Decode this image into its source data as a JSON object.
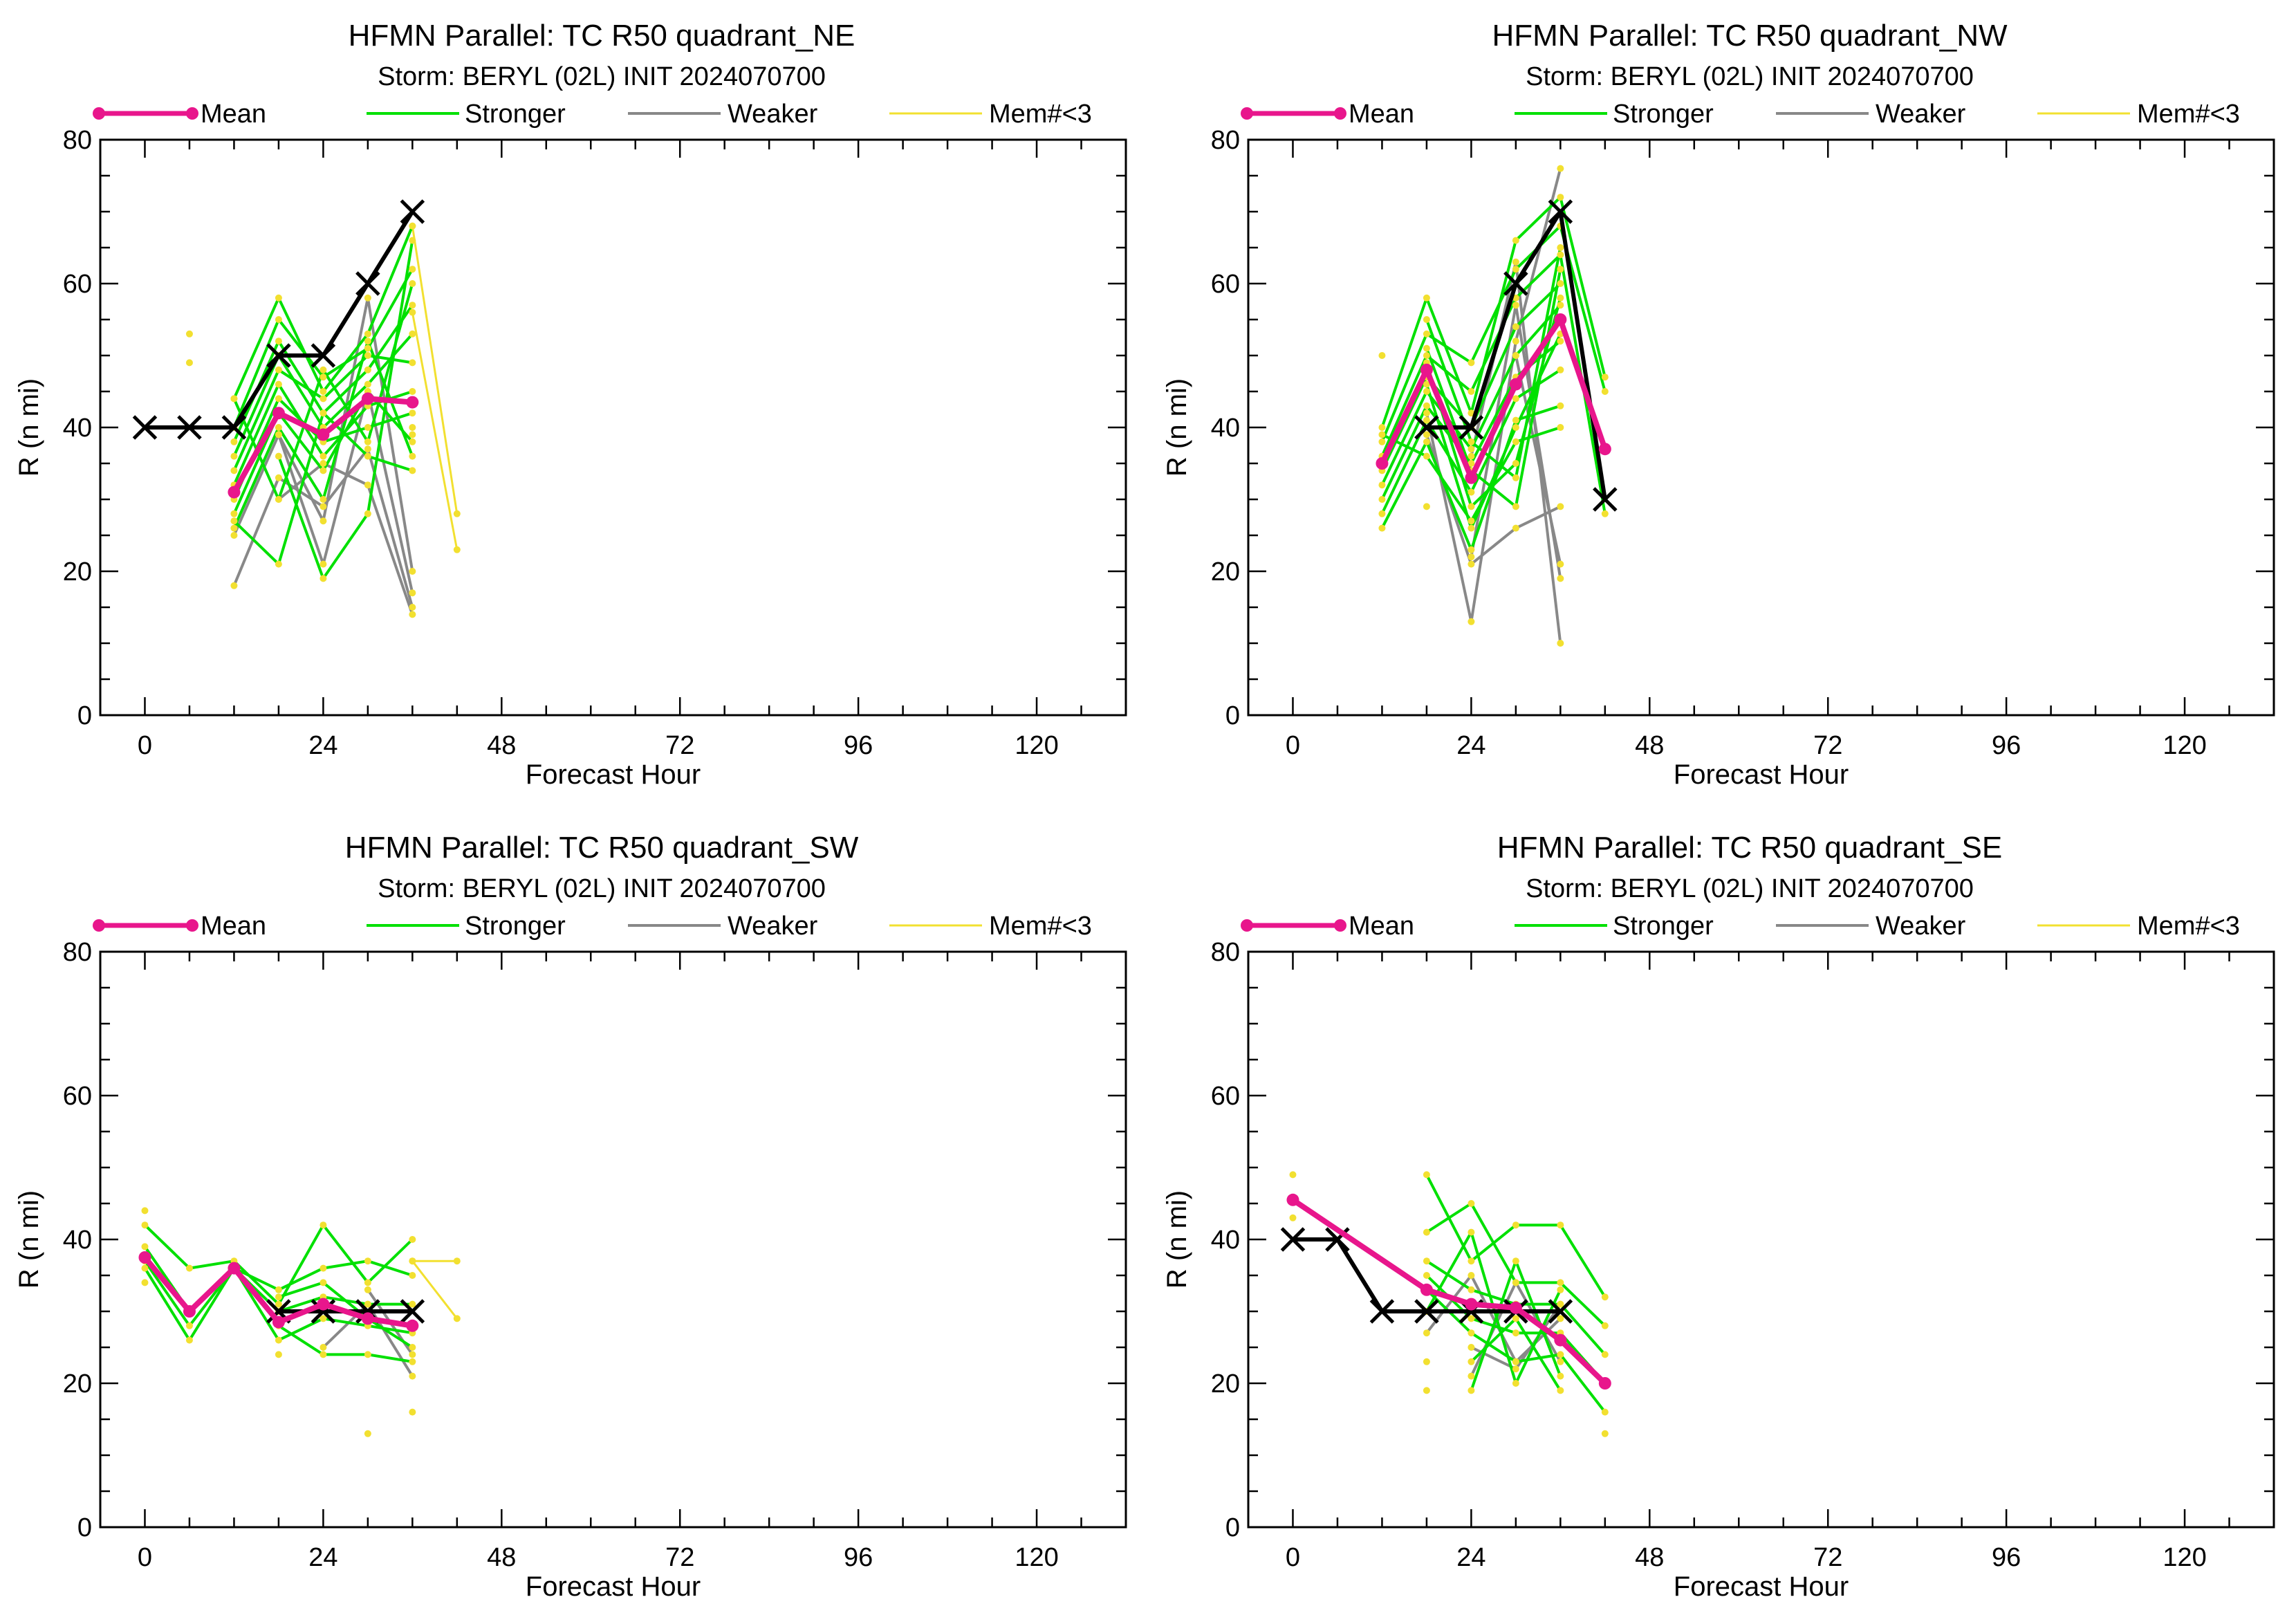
{
  "colors": {
    "mean": "#e8168c",
    "stronger": "#00e000",
    "weaker": "#888888",
    "mem3": "#f2e030",
    "best_track": "#000000",
    "axis": "#000000"
  },
  "legend": {
    "mean": "Mean",
    "stronger": "Stronger",
    "weaker": "Weaker",
    "mem3": "Mem#<3"
  },
  "chart_data": [
    {
      "type": "line",
      "title": "HFMN Parallel: TC  R50 quadrant_NE",
      "subtitle": "Storm: BERYL (02L) INIT 2024070700",
      "xlabel": "Forecast Hour",
      "ylabel": "R (n mi)",
      "xlim": [
        -6,
        132
      ],
      "ylim": [
        0,
        80
      ],
      "x_ticks": [
        0,
        24,
        48,
        72,
        96,
        120
      ],
      "y_ticks": [
        0,
        20,
        40,
        60,
        80
      ],
      "best_track": {
        "x": [
          0,
          6,
          12,
          18,
          24,
          30,
          36
        ],
        "y": [
          40,
          40,
          40,
          50,
          50,
          60,
          70
        ]
      },
      "mean": {
        "x": [
          12,
          18,
          24,
          30,
          36
        ],
        "y": [
          31,
          42,
          39,
          44,
          43.5
        ]
      },
      "stronger": [
        {
          "x": [
            12,
            18,
            24,
            30,
            36
          ],
          "y": [
            44,
            58,
            45,
            53,
            68
          ]
        },
        {
          "x": [
            12,
            18,
            24,
            30,
            36
          ],
          "y": [
            40,
            55,
            47,
            51,
            62
          ]
        },
        {
          "x": [
            12,
            18,
            24,
            30,
            36
          ],
          "y": [
            38,
            52,
            42,
            48,
            57
          ]
        },
        {
          "x": [
            12,
            18,
            24,
            30,
            36
          ],
          "y": [
            36,
            50,
            40,
            46,
            53
          ]
        },
        {
          "x": [
            12,
            18,
            24,
            30,
            36
          ],
          "y": [
            34,
            48,
            44,
            50,
            49
          ]
        },
        {
          "x": [
            12,
            18,
            24,
            30,
            36
          ],
          "y": [
            32,
            46,
            36,
            43,
            45
          ]
        },
        {
          "x": [
            12,
            18,
            24,
            30,
            36
          ],
          "y": [
            30,
            44,
            38,
            40,
            42
          ]
        },
        {
          "x": [
            12,
            18,
            24,
            30,
            36
          ],
          "y": [
            28,
            42,
            34,
            45,
            38
          ]
        },
        {
          "x": [
            12,
            18,
            24,
            30,
            36
          ],
          "y": [
            26,
            40,
            30,
            52,
            36
          ]
        },
        {
          "x": [
            12,
            18,
            24,
            30,
            36
          ],
          "y": [
            44,
            30,
            48,
            38,
            60
          ]
        },
        {
          "x": [
            12,
            18,
            24,
            30,
            36
          ],
          "y": [
            27,
            21,
            42,
            36,
            34
          ]
        },
        {
          "x": [
            18,
            24,
            30,
            36
          ],
          "y": [
            36,
            19,
            28,
            66
          ]
        }
      ],
      "weaker": [
        {
          "x": [
            12,
            18,
            24,
            30,
            36
          ],
          "y": [
            18,
            33,
            29,
            37,
            15
          ]
        },
        {
          "x": [
            12,
            18,
            24,
            30,
            36
          ],
          "y": [
            25,
            39,
            21,
            45,
            17
          ]
        },
        {
          "x": [
            18,
            24,
            30,
            36
          ],
          "y": [
            30,
            35,
            32,
            14
          ]
        },
        {
          "x": [
            18,
            24,
            30,
            36
          ],
          "y": [
            39,
            27,
            58,
            20
          ]
        }
      ],
      "mem3": [
        {
          "x": [
            36,
            42
          ],
          "y": [
            68,
            28
          ]
        },
        {
          "x": [
            36,
            42
          ],
          "y": [
            56,
            23
          ]
        }
      ],
      "mem3_points": {
        "x": [
          6,
          6,
          36,
          36
        ],
        "y": [
          53,
          49,
          40,
          39
        ]
      }
    },
    {
      "type": "line",
      "title": "HFMN Parallel: TC  R50 quadrant_NW",
      "subtitle": "Storm: BERYL (02L) INIT 2024070700",
      "xlabel": "Forecast Hour",
      "ylabel": "R (n mi)",
      "xlim": [
        -6,
        132
      ],
      "ylim": [
        0,
        80
      ],
      "x_ticks": [
        0,
        24,
        48,
        72,
        96,
        120
      ],
      "y_ticks": [
        0,
        20,
        40,
        60,
        80
      ],
      "best_track": {
        "x": [
          18,
          24,
          30,
          36,
          42
        ],
        "y": [
          40,
          40,
          60,
          70,
          30
        ]
      },
      "mean": {
        "x": [
          12,
          18,
          24,
          30,
          36,
          42
        ],
        "y": [
          35,
          48,
          33,
          46,
          55,
          37
        ]
      },
      "stronger": [
        {
          "x": [
            12,
            18,
            24,
            30,
            36,
            42
          ],
          "y": [
            40,
            58,
            42,
            66,
            72,
            47
          ]
        },
        {
          "x": [
            12,
            18,
            24,
            30,
            36,
            42
          ],
          "y": [
            38,
            53,
            49,
            62,
            68,
            45
          ]
        },
        {
          "x": [
            12,
            18,
            24,
            30,
            36,
            42
          ],
          "y": [
            36,
            50,
            45,
            58,
            64,
            28
          ]
        },
        {
          "x": [
            12,
            18,
            24,
            30,
            36
          ],
          "y": [
            34,
            47,
            40,
            54,
            60
          ]
        },
        {
          "x": [
            12,
            18,
            24,
            30,
            36
          ],
          "y": [
            32,
            45,
            37,
            50,
            57
          ]
        },
        {
          "x": [
            12,
            18,
            24,
            30,
            36
          ],
          "y": [
            30,
            43,
            35,
            47,
            52
          ]
        },
        {
          "x": [
            12,
            18,
            24,
            30,
            36
          ],
          "y": [
            28,
            41,
            31,
            44,
            48
          ]
        },
        {
          "x": [
            12,
            18,
            24,
            30,
            36
          ],
          "y": [
            26,
            38,
            23,
            41,
            43
          ]
        },
        {
          "x": [
            12,
            18,
            24,
            30,
            36
          ],
          "y": [
            39,
            36,
            27,
            38,
            40
          ]
        },
        {
          "x": [
            18,
            24,
            30,
            36
          ],
          "y": [
            55,
            38,
            33,
            65
          ]
        },
        {
          "x": [
            18,
            24,
            30,
            36
          ],
          "y": [
            51,
            34,
            29,
            62
          ]
        },
        {
          "x": [
            18,
            24,
            30,
            36
          ],
          "y": [
            49,
            29,
            35,
            58
          ]
        },
        {
          "x": [
            18,
            24,
            30,
            36
          ],
          "y": [
            46,
            26,
            40,
            53
          ]
        }
      ],
      "weaker": [
        {
          "x": [
            18,
            24,
            30,
            36
          ],
          "y": [
            42,
            13,
            52,
            76
          ]
        },
        {
          "x": [
            18,
            24,
            30,
            36
          ],
          "y": [
            39,
            21,
            26,
            29
          ]
        },
        {
          "x": [
            24,
            30,
            36
          ],
          "y": [
            36,
            63,
            10
          ]
        },
        {
          "x": [
            24,
            30,
            36
          ],
          "y": [
            22,
            57,
            19
          ]
        },
        {
          "x": [
            30,
            36
          ],
          "y": [
            50,
            21
          ]
        }
      ],
      "mem3": [],
      "mem3_points": {
        "x": [
          12,
          18
        ],
        "y": [
          50,
          29
        ]
      }
    },
    {
      "type": "line",
      "title": "HFMN Parallel: TC  R50 quadrant_SW",
      "subtitle": "Storm: BERYL (02L) INIT 2024070700",
      "xlabel": "Forecast Hour",
      "ylabel": "R (n mi)",
      "xlim": [
        -6,
        132
      ],
      "ylim": [
        0,
        80
      ],
      "x_ticks": [
        0,
        24,
        48,
        72,
        96,
        120
      ],
      "y_ticks": [
        0,
        20,
        40,
        60,
        80
      ],
      "best_track": {
        "x": [
          18,
          24,
          30,
          36
        ],
        "y": [
          30,
          30,
          30,
          30
        ]
      },
      "mean": {
        "x": [
          0,
          6,
          12,
          18,
          24,
          30,
          36
        ],
        "y": [
          37.5,
          30,
          36,
          28.5,
          31,
          29,
          28
        ]
      },
      "stronger": [
        {
          "x": [
            0,
            6,
            12,
            18,
            24,
            30,
            36
          ],
          "y": [
            42,
            36,
            37,
            31,
            42,
            34,
            40
          ]
        },
        {
          "x": [
            0,
            6,
            12,
            18,
            24,
            30,
            36
          ],
          "y": [
            39,
            30,
            36,
            33,
            36,
            37,
            35
          ]
        },
        {
          "x": [
            0,
            6,
            12,
            18,
            24,
            30,
            36
          ],
          "y": [
            37,
            28,
            36,
            30,
            32,
            31,
            31
          ]
        },
        {
          "x": [
            0,
            6,
            12,
            18,
            24,
            30,
            36
          ],
          "y": [
            36,
            26,
            36,
            26,
            29,
            28,
            27
          ]
        },
        {
          "x": [
            18,
            24,
            30,
            36
          ],
          "y": [
            28,
            24,
            24,
            23
          ]
        },
        {
          "x": [
            18,
            24,
            30,
            36
          ],
          "y": [
            32,
            34,
            29,
            25
          ]
        }
      ],
      "weaker": [
        {
          "x": [
            24,
            30,
            36
          ],
          "y": [
            25,
            31,
            21
          ]
        },
        {
          "x": [
            30,
            36
          ],
          "y": [
            33,
            24
          ]
        }
      ],
      "mem3": [
        {
          "x": [
            36,
            42
          ],
          "y": [
            37,
            37
          ]
        },
        {
          "x": [
            36,
            42
          ],
          "y": [
            37,
            29
          ]
        }
      ],
      "mem3_points": {
        "x": [
          0,
          0,
          18,
          30,
          36
        ],
        "y": [
          44,
          34,
          24,
          13,
          16
        ]
      }
    },
    {
      "type": "line",
      "title": "HFMN Parallel: TC  R50 quadrant_SE",
      "subtitle": "Storm: BERYL (02L) INIT 2024070700",
      "xlabel": "Forecast Hour",
      "ylabel": "R (n mi)",
      "xlim": [
        -6,
        132
      ],
      "ylim": [
        0,
        80
      ],
      "x_ticks": [
        0,
        24,
        48,
        72,
        96,
        120
      ],
      "y_ticks": [
        0,
        20,
        40,
        60,
        80
      ],
      "best_track": {
        "x": [
          0,
          6,
          12,
          18,
          24,
          30,
          36
        ],
        "y": [
          40,
          40,
          30,
          30,
          30,
          30,
          30
        ]
      },
      "mean": {
        "x": [
          0,
          18,
          24,
          30,
          36,
          42
        ],
        "y": [
          45.5,
          33,
          31,
          30.5,
          26,
          20
        ]
      },
      "stronger": [
        {
          "x": [
            18,
            24,
            30,
            36,
            42
          ],
          "y": [
            49,
            37,
            42,
            42,
            32
          ]
        },
        {
          "x": [
            18,
            24,
            30,
            36,
            42
          ],
          "y": [
            41,
            45,
            34,
            34,
            28
          ]
        },
        {
          "x": [
            18,
            24,
            30,
            36,
            42
          ],
          "y": [
            37,
            33,
            31,
            31,
            24
          ]
        },
        {
          "x": [
            18,
            24,
            30,
            36,
            42
          ],
          "y": [
            35,
            29,
            27,
            27,
            20
          ]
        },
        {
          "x": [
            18,
            24,
            30,
            36,
            42
          ],
          "y": [
            33,
            27,
            23,
            24,
            16
          ]
        },
        {
          "x": [
            18,
            24,
            30,
            36
          ],
          "y": [
            30,
            41,
            20,
            33
          ]
        },
        {
          "x": [
            24,
            30,
            36
          ],
          "y": [
            19,
            37,
            21
          ]
        },
        {
          "x": [
            24,
            30,
            36
          ],
          "y": [
            23,
            29,
            19
          ]
        }
      ],
      "weaker": [
        {
          "x": [
            18,
            24,
            30,
            36
          ],
          "y": [
            27,
            35,
            23,
            29
          ]
        },
        {
          "x": [
            24,
            30,
            36
          ],
          "y": [
            21,
            34,
            23
          ]
        },
        {
          "x": [
            24,
            30,
            36
          ],
          "y": [
            25,
            22,
            31
          ]
        }
      ],
      "mem3": [],
      "mem3_points": {
        "x": [
          0,
          0,
          18,
          18,
          42
        ],
        "y": [
          49,
          43,
          23,
          19,
          13
        ]
      }
    }
  ]
}
